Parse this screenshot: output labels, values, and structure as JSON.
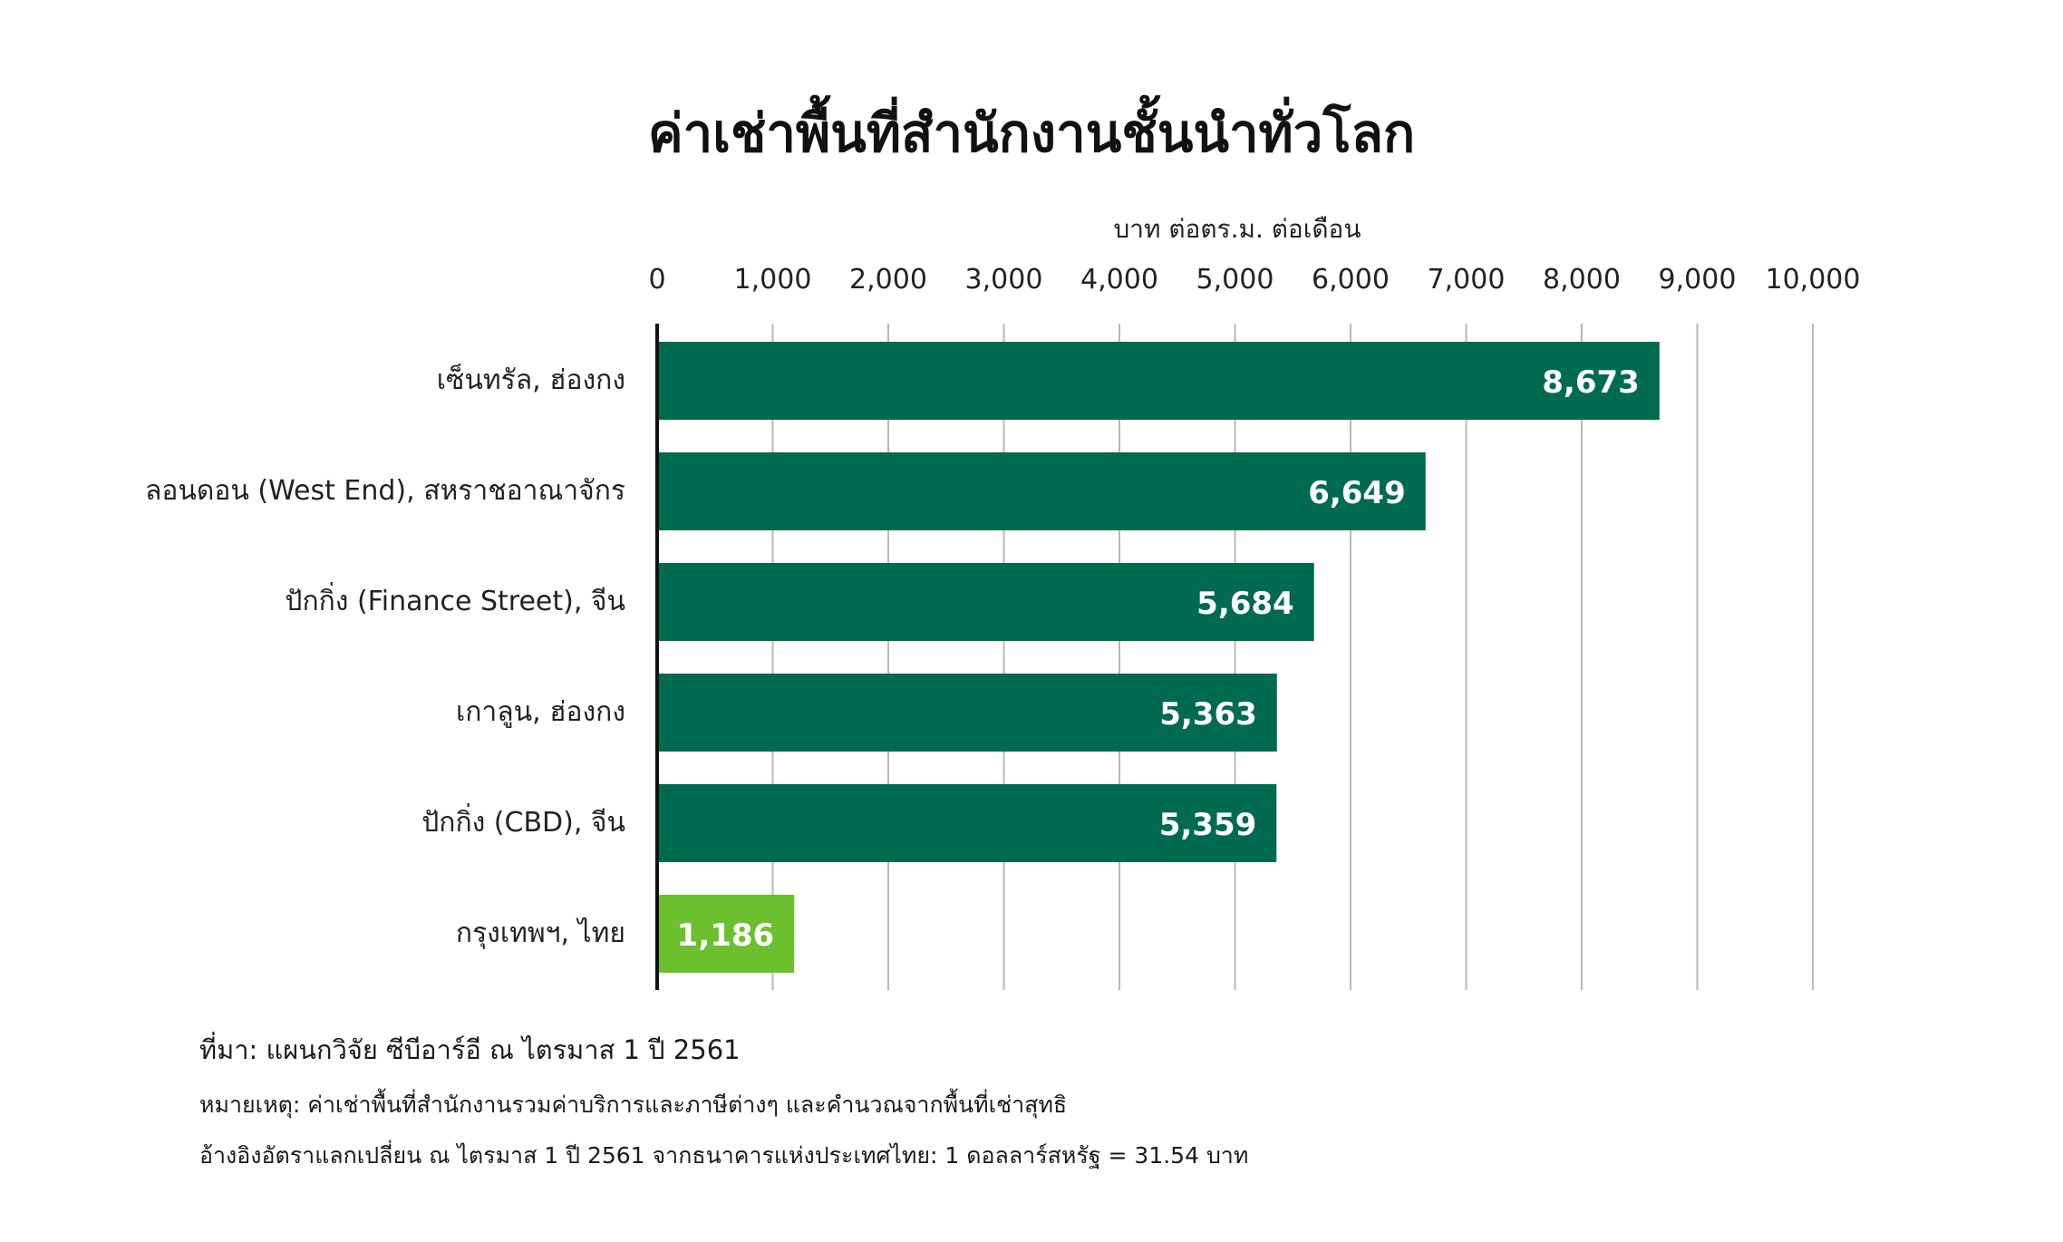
{
  "chart_data": {
    "type": "bar",
    "orientation": "horizontal",
    "title": "ค่าเช่าพื้นที่สำนักงานชั้นนำทั่วโลก",
    "xlabel": "บาท ต่อตร.ม. ต่อเดือน",
    "xlim": [
      0,
      10000
    ],
    "xticks": [
      "0",
      "1,000",
      "2,000",
      "3,000",
      "4,000",
      "5,000",
      "6,000",
      "7,000",
      "8,000",
      "9,000",
      "10,000"
    ],
    "grid": true,
    "categories": [
      "เซ็นทรัล, ฮ่องกง",
      "ลอนดอน (West End), สหราชอาณาจักร",
      "ปักกิ่ง (Finance Street), จีน",
      "เกาลูน, ฮ่องกง",
      "ปักกิ่ง (CBD), จีน",
      "กรุงเทพฯ, ไทย"
    ],
    "values": [
      8673,
      6649,
      5684,
      5363,
      5359,
      1186
    ],
    "value_labels": [
      "8,673",
      "6,649",
      "5,684",
      "5,363",
      "5,359",
      "1,186"
    ],
    "colors": [
      "#006b4e",
      "#006b4e",
      "#006b4e",
      "#006b4e",
      "#006b4e",
      "#6cbf2d"
    ]
  },
  "notes": {
    "source": "ที่มา: แผนกวิจัย ซีบีอาร์อี ณ ไตรมาส 1 ปี 2561",
    "note1": "หมายเหตุ: ค่าเช่าพื้นที่สำนักงานรวมค่าบริการและภาษีต่างๆ และคำนวณจากพื้นที่เช่าสุทธิ",
    "note2": "อ้างอิงอัตราแลกเปลี่ยน ณ ไตรมาส 1 ปี 2561 จากธนาคารแห่งประเทศไทย: 1 ดอลลาร์สหรัฐ = 31.54 บาท"
  }
}
